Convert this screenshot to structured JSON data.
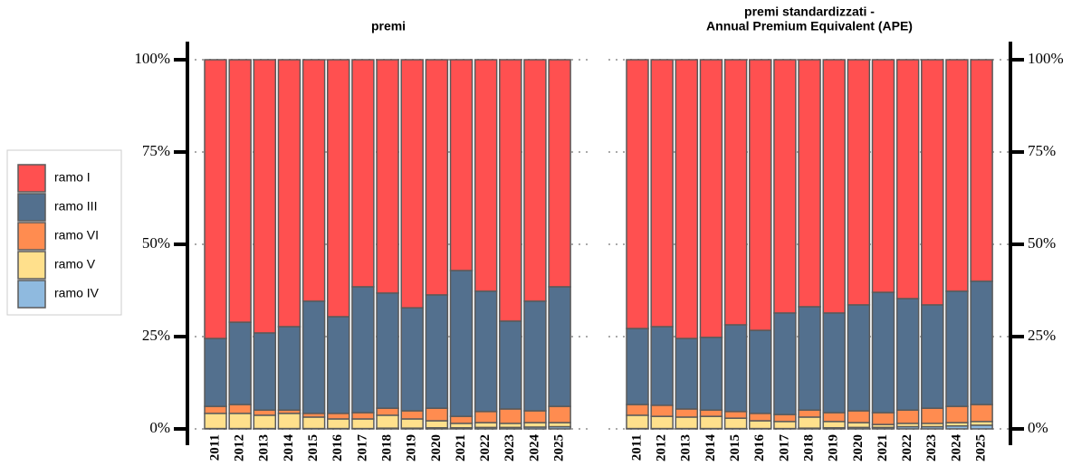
{
  "chart_data": [
    {
      "type": "stacked-bar",
      "title": [
        "premi"
      ],
      "categories": [
        "2011",
        "2012",
        "2013",
        "2014",
        "2015",
        "2016",
        "2017",
        "2018",
        "2019",
        "2020",
        "2021",
        "2022",
        "2023",
        "2024",
        "2025"
      ],
      "series": [
        {
          "name": "ramo I",
          "color": "#ff5050",
          "values": [
            75.5,
            71.1,
            74,
            72.3,
            65.4,
            69.6,
            61.5,
            63.2,
            67.2,
            63.7,
            57.1,
            62.7,
            70.8,
            65.4,
            61.5
          ]
        },
        {
          "name": "ramo III",
          "color": "#53708e",
          "values": [
            18.4,
            22.3,
            20.9,
            22.6,
            30.4,
            26.2,
            34.1,
            31.2,
            27.9,
            30.7,
            39.5,
            32.6,
            23.8,
            29.7,
            32.4
          ]
        },
        {
          "name": "ramo VI",
          "color": "#ff8c50",
          "values": [
            1.9,
            2.4,
            1.4,
            0.9,
            1.0,
            1.5,
            1.7,
            1.9,
            2.2,
            3.4,
            1.9,
            3.0,
            3.9,
            3.2,
            4.4
          ]
        },
        {
          "name": "ramo V",
          "color": "#ffe08c",
          "values": [
            4.1,
            4.1,
            3.6,
            4.1,
            3.1,
            2.6,
            2.6,
            3.5,
            2.5,
            1.9,
            1.2,
            1.3,
            1.1,
            1.2,
            1.1
          ]
        },
        {
          "name": "ramo IV",
          "color": "#8fbadf",
          "values": [
            0.1,
            0.1,
            0.1,
            0.1,
            0.1,
            0.1,
            0.1,
            0.2,
            0.2,
            0.3,
            0.3,
            0.4,
            0.4,
            0.5,
            0.6
          ]
        }
      ],
      "ylim": [
        0,
        100
      ],
      "yticks": [
        {
          "value": 0,
          "label": "0%"
        },
        {
          "value": 25,
          "label": "25%"
        },
        {
          "value": 50,
          "label": "50%"
        },
        {
          "value": 75,
          "label": "75%"
        },
        {
          "value": 100,
          "label": "100%"
        }
      ],
      "grid": true
    },
    {
      "type": "stacked-bar",
      "title": [
        "premi standardizzati -",
        "Annual Premium Equivalent (APE)"
      ],
      "categories": [
        "2011",
        "2012",
        "2013",
        "2014",
        "2015",
        "2016",
        "2017",
        "2018",
        "2019",
        "2020",
        "2021",
        "2022",
        "2023",
        "2024",
        "2025"
      ],
      "series": [
        {
          "name": "ramo I",
          "color": "#ff5050",
          "values": [
            72.8,
            72.3,
            75.5,
            75.2,
            71.8,
            73.3,
            68.6,
            66.9,
            68.6,
            66.4,
            63,
            64.7,
            66.4,
            62.7,
            60
          ]
        },
        {
          "name": "ramo III",
          "color": "#53708e",
          "values": [
            20.6,
            21.3,
            19.1,
            19.7,
            23.5,
            22.5,
            27.5,
            28.0,
            27.0,
            28.7,
            32.6,
            30.2,
            28.0,
            31.2,
            33.4
          ]
        },
        {
          "name": "ramo VI",
          "color": "#ff8c50",
          "values": [
            2.9,
            3.0,
            2.2,
            1.7,
            1.8,
            2.0,
            1.9,
            1.9,
            2.4,
            3.2,
            3.2,
            3.6,
            4.1,
            4.4,
            4.6
          ]
        },
        {
          "name": "ramo V",
          "color": "#ffe08c",
          "values": [
            3.6,
            3.3,
            3.1,
            3.3,
            2.8,
            2.1,
            1.9,
            3.0,
            1.7,
            1.3,
            0.8,
            0.9,
            0.9,
            0.9,
            1.0
          ]
        },
        {
          "name": "ramo IV",
          "color": "#8fbadf",
          "values": [
            0.1,
            0.1,
            0.1,
            0.1,
            0.1,
            0.1,
            0.1,
            0.2,
            0.3,
            0.4,
            0.4,
            0.6,
            0.6,
            0.8,
            1.0
          ]
        }
      ],
      "ylim": [
        0,
        100
      ],
      "yticks": [
        {
          "value": 0,
          "label": "0%"
        },
        {
          "value": 25,
          "label": "25%"
        },
        {
          "value": 50,
          "label": "50%"
        },
        {
          "value": 75,
          "label": "75%"
        },
        {
          "value": 100,
          "label": "100%"
        }
      ],
      "grid": true
    }
  ]
}
